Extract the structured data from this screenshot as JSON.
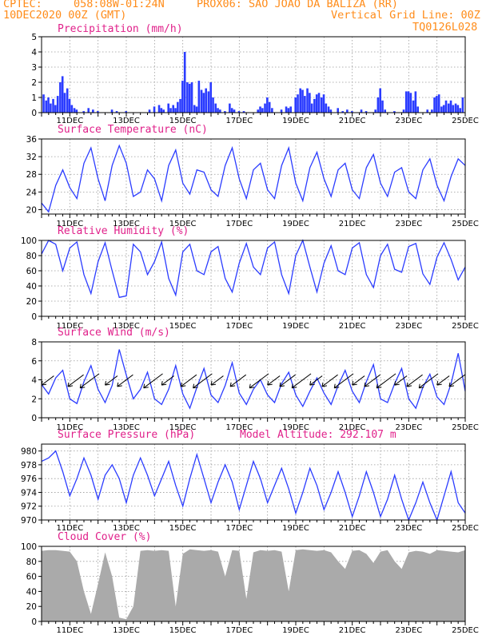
{
  "header": {
    "line1_left": "CPTEC:",
    "coords": "058:08W-01:24N",
    "station": "PROX06: SAO JOAO DA BALIZA (RR)",
    "date": "10DEC2020 00Z (GMT)",
    "grid_note": "Vertical Grid Line: 00Z",
    "run_code": "TQ0126L028"
  },
  "chart_data": [
    {
      "type": "bar",
      "title": "Precipitation (mm/h)",
      "ylim": [
        0,
        5
      ],
      "yticks": [
        0,
        1,
        2,
        3,
        4,
        5
      ],
      "xticks": [
        "11DEC",
        "13DEC",
        "15DEC",
        "17DEC",
        "19DEC",
        "21DEC",
        "23DEC",
        "25DEC"
      ],
      "color": "#2b3cff",
      "series": [
        {
          "x": 0.08,
          "y": 1.2
        },
        {
          "x": 0.17,
          "y": 0.8
        },
        {
          "x": 0.25,
          "y": 1.0
        },
        {
          "x": 0.33,
          "y": 0.6
        },
        {
          "x": 0.42,
          "y": 0.9
        },
        {
          "x": 0.5,
          "y": 0.5
        },
        {
          "x": 0.58,
          "y": 1.1
        },
        {
          "x": 0.67,
          "y": 2.0
        },
        {
          "x": 0.75,
          "y": 2.4
        },
        {
          "x": 0.83,
          "y": 1.3
        },
        {
          "x": 0.92,
          "y": 1.6
        },
        {
          "x": 1.0,
          "y": 0.9
        },
        {
          "x": 1.08,
          "y": 0.5
        },
        {
          "x": 1.17,
          "y": 0.3
        },
        {
          "x": 1.25,
          "y": 0.2
        },
        {
          "x": 1.5,
          "y": 0.1
        },
        {
          "x": 1.67,
          "y": 0.3
        },
        {
          "x": 1.83,
          "y": 0.2
        },
        {
          "x": 2.0,
          "y": 0.1
        },
        {
          "x": 2.5,
          "y": 0.2
        },
        {
          "x": 2.67,
          "y": 0.1
        },
        {
          "x": 3.0,
          "y": 0.1
        },
        {
          "x": 3.83,
          "y": 0.2
        },
        {
          "x": 4.0,
          "y": 0.4
        },
        {
          "x": 4.17,
          "y": 0.5
        },
        {
          "x": 4.25,
          "y": 0.3
        },
        {
          "x": 4.33,
          "y": 0.2
        },
        {
          "x": 4.5,
          "y": 0.6
        },
        {
          "x": 4.58,
          "y": 0.3
        },
        {
          "x": 4.67,
          "y": 0.5
        },
        {
          "x": 4.75,
          "y": 0.3
        },
        {
          "x": 4.83,
          "y": 0.7
        },
        {
          "x": 4.92,
          "y": 0.9
        },
        {
          "x": 5.0,
          "y": 2.1
        },
        {
          "x": 5.08,
          "y": 4.0
        },
        {
          "x": 5.17,
          "y": 2.0
        },
        {
          "x": 5.25,
          "y": 1.9
        },
        {
          "x": 5.33,
          "y": 2.0
        },
        {
          "x": 5.42,
          "y": 0.5
        },
        {
          "x": 5.5,
          "y": 0.4
        },
        {
          "x": 5.58,
          "y": 2.1
        },
        {
          "x": 5.67,
          "y": 1.5
        },
        {
          "x": 5.75,
          "y": 1.3
        },
        {
          "x": 5.83,
          "y": 1.6
        },
        {
          "x": 5.92,
          "y": 1.4
        },
        {
          "x": 6.0,
          "y": 2.0
        },
        {
          "x": 6.08,
          "y": 1.0
        },
        {
          "x": 6.17,
          "y": 0.6
        },
        {
          "x": 6.25,
          "y": 0.3
        },
        {
          "x": 6.33,
          "y": 0.2
        },
        {
          "x": 6.5,
          "y": 0.1
        },
        {
          "x": 6.67,
          "y": 0.6
        },
        {
          "x": 6.75,
          "y": 0.3
        },
        {
          "x": 6.83,
          "y": 0.2
        },
        {
          "x": 7.0,
          "y": 0.1
        },
        {
          "x": 7.17,
          "y": 0.1
        },
        {
          "x": 7.67,
          "y": 0.2
        },
        {
          "x": 7.75,
          "y": 0.4
        },
        {
          "x": 7.83,
          "y": 0.3
        },
        {
          "x": 7.92,
          "y": 0.6
        },
        {
          "x": 8.0,
          "y": 1.0
        },
        {
          "x": 8.08,
          "y": 0.7
        },
        {
          "x": 8.17,
          "y": 0.3
        },
        {
          "x": 8.5,
          "y": 0.2
        },
        {
          "x": 8.67,
          "y": 0.4
        },
        {
          "x": 8.75,
          "y": 0.3
        },
        {
          "x": 8.83,
          "y": 0.4
        },
        {
          "x": 9.0,
          "y": 1.0
        },
        {
          "x": 9.08,
          "y": 1.2
        },
        {
          "x": 9.17,
          "y": 1.6
        },
        {
          "x": 9.25,
          "y": 1.5
        },
        {
          "x": 9.33,
          "y": 1.1
        },
        {
          "x": 9.42,
          "y": 1.6
        },
        {
          "x": 9.5,
          "y": 1.3
        },
        {
          "x": 9.58,
          "y": 0.6
        },
        {
          "x": 9.67,
          "y": 0.9
        },
        {
          "x": 9.75,
          "y": 1.2
        },
        {
          "x": 9.83,
          "y": 1.3
        },
        {
          "x": 9.92,
          "y": 1.0
        },
        {
          "x": 10.0,
          "y": 1.2
        },
        {
          "x": 10.08,
          "y": 0.6
        },
        {
          "x": 10.17,
          "y": 0.4
        },
        {
          "x": 10.25,
          "y": 0.2
        },
        {
          "x": 10.5,
          "y": 0.3
        },
        {
          "x": 10.67,
          "y": 0.1
        },
        {
          "x": 10.83,
          "y": 0.2
        },
        {
          "x": 11.0,
          "y": 0.1
        },
        {
          "x": 11.33,
          "y": 0.2
        },
        {
          "x": 11.5,
          "y": 0.1
        },
        {
          "x": 11.83,
          "y": 0.2
        },
        {
          "x": 11.92,
          "y": 1.0
        },
        {
          "x": 12.0,
          "y": 1.6
        },
        {
          "x": 12.08,
          "y": 0.8
        },
        {
          "x": 12.17,
          "y": 0.2
        },
        {
          "x": 12.5,
          "y": 0.1
        },
        {
          "x": 12.83,
          "y": 0.2
        },
        {
          "x": 12.92,
          "y": 1.4
        },
        {
          "x": 13.0,
          "y": 1.4
        },
        {
          "x": 13.08,
          "y": 1.3
        },
        {
          "x": 13.17,
          "y": 0.8
        },
        {
          "x": 13.25,
          "y": 1.4
        },
        {
          "x": 13.33,
          "y": 0.4
        },
        {
          "x": 13.67,
          "y": 0.2
        },
        {
          "x": 13.83,
          "y": 0.2
        },
        {
          "x": 13.92,
          "y": 1.0
        },
        {
          "x": 14.0,
          "y": 1.1
        },
        {
          "x": 14.08,
          "y": 1.2
        },
        {
          "x": 14.17,
          "y": 0.4
        },
        {
          "x": 14.25,
          "y": 0.5
        },
        {
          "x": 14.33,
          "y": 0.8
        },
        {
          "x": 14.42,
          "y": 0.6
        },
        {
          "x": 14.5,
          "y": 0.8
        },
        {
          "x": 14.58,
          "y": 0.5
        },
        {
          "x": 14.67,
          "y": 0.6
        },
        {
          "x": 14.75,
          "y": 0.5
        },
        {
          "x": 14.83,
          "y": 0.3
        },
        {
          "x": 14.92,
          "y": 1.0
        }
      ]
    },
    {
      "type": "line",
      "title": "Surface Temperature (nC)",
      "ylim": [
        19,
        36
      ],
      "yticks": [
        20,
        24,
        28,
        32,
        36
      ],
      "xticks": [
        "11DEC",
        "13DEC",
        "15DEC",
        "17DEC",
        "19DEC",
        "21DEC",
        "23DEC",
        "25DEC"
      ],
      "color": "#2b3cff",
      "x": [
        0,
        0.25,
        0.5,
        0.75,
        1,
        1.25,
        1.5,
        1.75,
        2,
        2.25,
        2.5,
        2.75,
        3,
        3.25,
        3.5,
        3.75,
        4,
        4.25,
        4.5,
        4.75,
        5,
        5.25,
        5.5,
        5.75,
        6,
        6.25,
        6.5,
        6.75,
        7,
        7.25,
        7.5,
        7.75,
        8,
        8.25,
        8.5,
        8.75,
        9,
        9.25,
        9.5,
        9.75,
        10,
        10.25,
        10.5,
        10.75,
        11,
        11.25,
        11.5,
        11.75,
        12,
        12.25,
        12.5,
        12.75,
        13,
        13.25,
        13.5,
        13.75,
        14,
        14.25,
        14.5,
        14.75,
        15
      ],
      "values": [
        21.5,
        19.5,
        25.5,
        29.0,
        25.0,
        22.5,
        30.5,
        34.0,
        27.0,
        22.0,
        30.0,
        34.5,
        30.5,
        23.0,
        24.0,
        29.0,
        27.0,
        22.0,
        30.0,
        33.5,
        26.0,
        23.5,
        29.0,
        28.5,
        24.5,
        23.0,
        30.0,
        34.0,
        27.0,
        22.5,
        29.0,
        30.5,
        24.5,
        22.5,
        30.0,
        34.0,
        26.0,
        22.0,
        29.5,
        33.0,
        27.0,
        23.0,
        29.0,
        30.5,
        24.5,
        22.5,
        29.5,
        32.5,
        26.0,
        23.0,
        28.5,
        29.5,
        24.0,
        22.5,
        29.0,
        31.5,
        25.5,
        22.0,
        27.5,
        31.5,
        30.0
      ]
    },
    {
      "type": "line",
      "title": "Relative Humidity (%)",
      "ylim": [
        0,
        100
      ],
      "yticks": [
        0,
        20,
        40,
        60,
        80,
        100
      ],
      "xticks": [
        "11DEC",
        "13DEC",
        "15DEC",
        "17DEC",
        "19DEC",
        "21DEC",
        "23DEC",
        "25DEC"
      ],
      "color": "#2b3cff",
      "x": [
        0,
        0.25,
        0.5,
        0.75,
        1,
        1.25,
        1.5,
        1.75,
        2,
        2.25,
        2.5,
        2.75,
        3,
        3.25,
        3.5,
        3.75,
        4,
        4.25,
        4.5,
        4.75,
        5,
        5.25,
        5.5,
        5.75,
        6,
        6.25,
        6.5,
        6.75,
        7,
        7.25,
        7.5,
        7.75,
        8,
        8.25,
        8.5,
        8.75,
        9,
        9.25,
        9.5,
        9.75,
        10,
        10.25,
        10.5,
        10.75,
        11,
        11.25,
        11.5,
        11.75,
        12,
        12.25,
        12.5,
        12.75,
        13,
        13.25,
        13.5,
        13.75,
        14,
        14.25,
        14.5,
        14.75,
        15
      ],
      "values": [
        82,
        100,
        95,
        60,
        90,
        98,
        55,
        30,
        72,
        97,
        60,
        25,
        27,
        95,
        85,
        55,
        72,
        98,
        50,
        28,
        85,
        95,
        60,
        55,
        85,
        92,
        50,
        32,
        70,
        96,
        65,
        55,
        90,
        98,
        55,
        30,
        80,
        100,
        65,
        32,
        70,
        93,
        60,
        55,
        90,
        97,
        55,
        38,
        80,
        95,
        62,
        58,
        92,
        96,
        56,
        42,
        78,
        97,
        75,
        48,
        65
      ]
    },
    {
      "type": "line",
      "title": "Surface Wind (m/s)",
      "ylim": [
        0,
        8
      ],
      "yticks": [
        0,
        2,
        4,
        6,
        8
      ],
      "xticks": [
        "11DEC",
        "13DEC",
        "15DEC",
        "17DEC",
        "19DEC",
        "21DEC",
        "23DEC",
        "25DEC"
      ],
      "color": "#2b3cff",
      "x": [
        0,
        0.25,
        0.5,
        0.75,
        1,
        1.25,
        1.5,
        1.75,
        2,
        2.25,
        2.5,
        2.75,
        3,
        3.25,
        3.5,
        3.75,
        4,
        4.25,
        4.5,
        4.75,
        5,
        5.25,
        5.5,
        5.75,
        6,
        6.25,
        6.5,
        6.75,
        7,
        7.25,
        7.5,
        7.75,
        8,
        8.25,
        8.5,
        8.75,
        9,
        9.25,
        9.5,
        9.75,
        10,
        10.25,
        10.5,
        10.75,
        11,
        11.25,
        11.5,
        11.75,
        12,
        12.25,
        12.5,
        12.75,
        13,
        13.25,
        13.5,
        13.75,
        14,
        14.25,
        14.5,
        14.75,
        15
      ],
      "values": [
        3.5,
        2.5,
        4.2,
        5.0,
        2.0,
        1.5,
        3.8,
        5.5,
        3.0,
        1.6,
        3.4,
        7.2,
        4.5,
        2.0,
        3.0,
        4.8,
        2.0,
        1.4,
        3.0,
        5.5,
        2.5,
        1.0,
        3.2,
        5.2,
        2.4,
        1.6,
        3.4,
        5.8,
        2.6,
        1.4,
        3.0,
        4.0,
        2.4,
        1.6,
        3.6,
        4.8,
        2.4,
        1.2,
        2.8,
        4.2,
        2.6,
        1.4,
        3.4,
        5.0,
        2.8,
        1.6,
        3.8,
        5.6,
        2.0,
        1.6,
        3.6,
        5.2,
        2.0,
        1.0,
        3.2,
        4.6,
        2.2,
        1.4,
        3.6,
        6.8,
        2.8
      ],
      "arrow_hours": [
        0.25,
        1.25,
        1.75,
        2.5,
        3.0,
        4.0,
        4.5,
        5.25,
        5.75,
        6.25,
        7.0,
        7.75,
        8.25,
        8.75,
        9.25,
        9.75,
        10.25,
        10.75,
        11.25,
        11.75,
        12.25,
        12.75,
        13.25,
        13.75,
        14.25,
        14.75
      ]
    },
    {
      "type": "line",
      "title": "Surface Pressure (hPa)",
      "annotation": "Model Altitude: 292.107 m",
      "ylim": [
        970,
        981
      ],
      "yticks": [
        970,
        972,
        974,
        976,
        978,
        980
      ],
      "xticks": [
        "11DEC",
        "13DEC",
        "15DEC",
        "17DEC",
        "19DEC",
        "21DEC",
        "23DEC",
        "25DEC"
      ],
      "color": "#2b3cff",
      "x": [
        0,
        0.25,
        0.5,
        0.75,
        1,
        1.25,
        1.5,
        1.75,
        2,
        2.25,
        2.5,
        2.75,
        3,
        3.25,
        3.5,
        3.75,
        4,
        4.25,
        4.5,
        4.75,
        5,
        5.25,
        5.5,
        5.75,
        6,
        6.25,
        6.5,
        6.75,
        7,
        7.25,
        7.5,
        7.75,
        8,
        8.25,
        8.5,
        8.75,
        9,
        9.25,
        9.5,
        9.75,
        10,
        10.25,
        10.5,
        10.75,
        11,
        11.25,
        11.5,
        11.75,
        12,
        12.25,
        12.5,
        12.75,
        13,
        13.25,
        13.5,
        13.75,
        14,
        14.25,
        14.5,
        14.75,
        15
      ],
      "values": [
        978.5,
        979.0,
        980.0,
        977.0,
        973.5,
        976.0,
        979.0,
        976.5,
        973.0,
        976.5,
        978.0,
        976.0,
        972.5,
        976.5,
        979.0,
        976.5,
        973.5,
        976.0,
        978.5,
        975.0,
        972.0,
        976.0,
        979.5,
        976.0,
        972.5,
        975.5,
        978.0,
        975.5,
        971.5,
        975.0,
        978.5,
        976.0,
        972.5,
        975.0,
        977.5,
        974.5,
        971.0,
        974.0,
        977.5,
        975.0,
        971.5,
        974.0,
        977.0,
        974.0,
        970.5,
        973.5,
        977.0,
        974.0,
        970.5,
        973.0,
        976.5,
        973.0,
        970.0,
        972.5,
        975.5,
        972.5,
        970.0,
        973.5,
        977.0,
        972.5,
        971.0
      ]
    },
    {
      "type": "area",
      "title": "Cloud Cover (%)",
      "ylim": [
        0,
        100
      ],
      "yticks": [
        0,
        20,
        40,
        60,
        80,
        100
      ],
      "xticks": [
        "11DEC",
        "13DEC",
        "15DEC",
        "17DEC",
        "19DEC",
        "21DEC",
        "23DEC",
        "25DEC"
      ],
      "color": "#aaaaaa",
      "x": [
        0,
        0.25,
        0.5,
        0.75,
        1,
        1.25,
        1.5,
        1.75,
        2,
        2.25,
        2.5,
        2.75,
        3,
        3.25,
        3.5,
        3.75,
        4,
        4.25,
        4.5,
        4.75,
        5,
        5.25,
        5.5,
        5.75,
        6,
        6.25,
        6.5,
        6.75,
        7,
        7.25,
        7.5,
        7.75,
        8,
        8.25,
        8.5,
        8.75,
        9,
        9.25,
        9.5,
        9.75,
        10,
        10.25,
        10.5,
        10.75,
        11,
        11.25,
        11.5,
        11.75,
        12,
        12.25,
        12.5,
        12.75,
        13,
        13.25,
        13.5,
        13.75,
        14,
        14.25,
        14.5,
        14.75,
        15
      ],
      "values": [
        94,
        95,
        95,
        94,
        93,
        80,
        40,
        10,
        50,
        92,
        60,
        5,
        3,
        20,
        94,
        95,
        94,
        95,
        94,
        20,
        90,
        96,
        95,
        94,
        95,
        93,
        60,
        95,
        94,
        30,
        92,
        95,
        94,
        95,
        93,
        40,
        95,
        96,
        95,
        94,
        95,
        92,
        80,
        70,
        94,
        95,
        90,
        78,
        93,
        95,
        80,
        70,
        92,
        94,
        93,
        90,
        95,
        94,
        93,
        92,
        95
      ]
    }
  ]
}
